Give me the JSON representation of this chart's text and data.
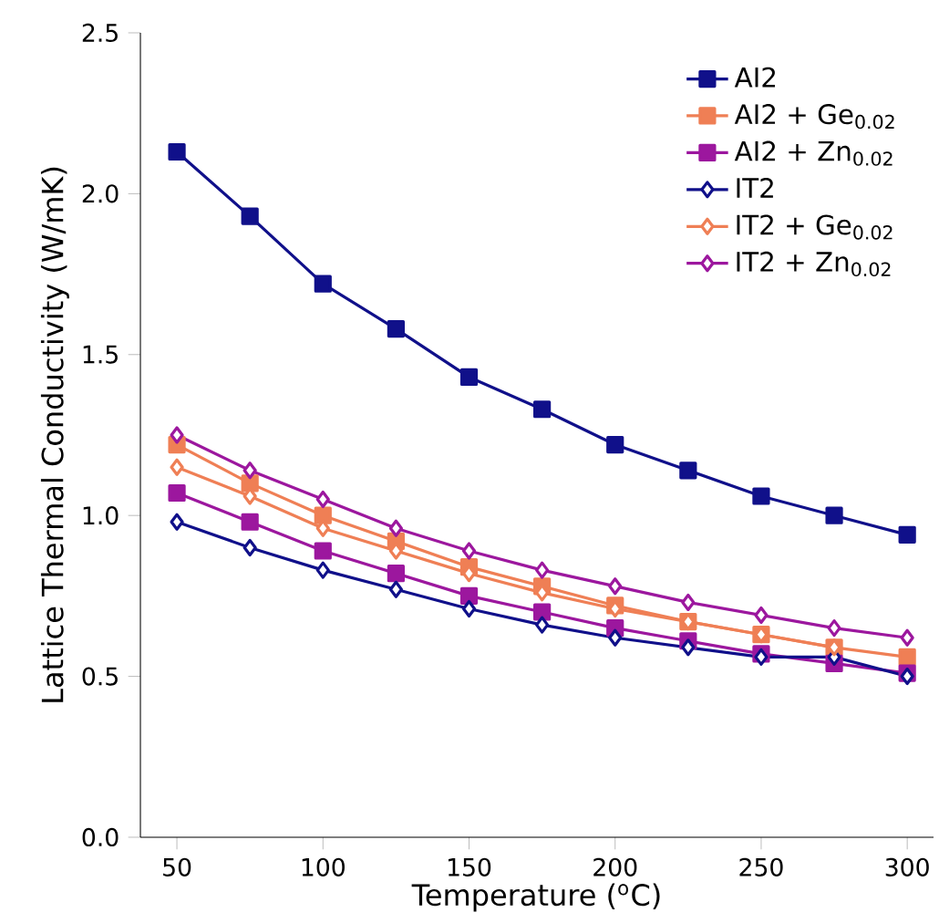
{
  "chart_data": {
    "type": "line",
    "xlabel": "Temperature ($^{o}$C)",
    "ylabel": "Lattice Thermal Conductivity (W/mK)",
    "x": [
      50,
      75,
      100,
      125,
      150,
      175,
      200,
      225,
      250,
      275,
      300
    ],
    "xlim": [
      37.5,
      309
    ],
    "xticks": [
      50,
      100,
      150,
      200,
      250,
      300
    ],
    "ylim": [
      0,
      2.5
    ],
    "yticks": [
      {
        "value": 0,
        "label": "0.0"
      },
      0.5,
      {
        "value": 1,
        "label": "1.0"
      },
      1.5,
      {
        "value": 2,
        "label": "2.0"
      },
      2.5
    ],
    "legend": "top right",
    "grid": false,
    "series": [
      {
        "name": "AI2",
        "color": "#10108a",
        "marker": "square",
        "values": [
          2.13,
          1.93,
          1.72,
          1.58,
          1.43,
          1.33,
          1.22,
          1.14,
          1.06,
          1.0,
          0.94
        ]
      },
      {
        "name": "AI2 + Ge$_{0.02}$",
        "color": "#ef7f55",
        "marker": "square",
        "values": [
          1.22,
          1.1,
          1.0,
          0.92,
          0.84,
          0.78,
          0.72,
          0.67,
          0.63,
          0.59,
          0.56
        ]
      },
      {
        "name": "AI2 + Zn$_{0.02}$",
        "color": "#9c179e",
        "marker": "square",
        "values": [
          1.07,
          0.98,
          0.89,
          0.82,
          0.75,
          0.7,
          0.65,
          0.61,
          0.57,
          0.54,
          0.51
        ]
      },
      {
        "name": "IT2",
        "color": "#10108a",
        "marker": "diamond",
        "values": [
          0.98,
          0.9,
          0.83,
          0.77,
          0.71,
          0.66,
          0.62,
          0.59,
          0.56,
          0.56,
          0.5
        ]
      },
      {
        "name": "IT2 + Ge$_{0.02}$",
        "color": "#ef7f55",
        "marker": "diamond",
        "values": [
          1.15,
          1.06,
          0.96,
          0.89,
          0.82,
          0.76,
          0.71,
          0.67,
          0.63,
          0.59,
          null
        ]
      },
      {
        "name": "IT2 + Zn$_{0.02}$",
        "color": "#9c179e",
        "marker": "diamond",
        "values": [
          1.25,
          1.14,
          1.05,
          0.96,
          0.89,
          0.83,
          0.78,
          0.73,
          0.69,
          0.65,
          0.62
        ]
      }
    ]
  }
}
